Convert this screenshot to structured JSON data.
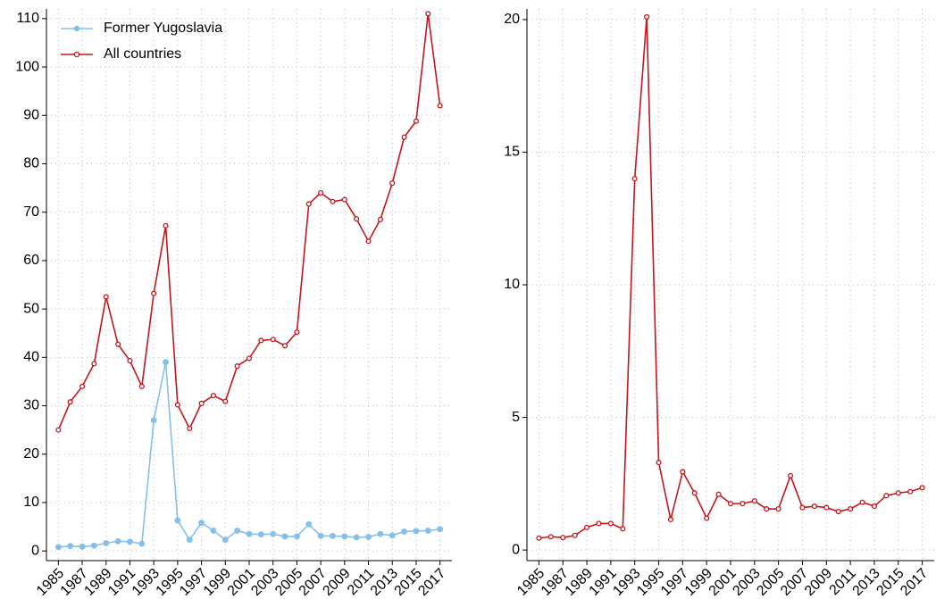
{
  "chart_data": [
    {
      "type": "line",
      "x": [
        1985,
        1986,
        1987,
        1988,
        1989,
        1990,
        1991,
        1992,
        1993,
        1994,
        1995,
        1996,
        1997,
        1998,
        1999,
        2000,
        2001,
        2002,
        2003,
        2004,
        2005,
        2006,
        2007,
        2008,
        2009,
        2010,
        2011,
        2012,
        2013,
        2014,
        2015,
        2016,
        2017
      ],
      "series": [
        {
          "name": "Former Yugoslavia",
          "color": "#85c0e9",
          "marker": "filled",
          "values": [
            0.8,
            1.0,
            0.9,
            1.1,
            1.6,
            2.0,
            1.9,
            1.5,
            27,
            39,
            6.3,
            2.3,
            5.8,
            4.2,
            2.3,
            4.2,
            3.5,
            3.4,
            3.5,
            3.0,
            3.0,
            5.5,
            3.1,
            3.1,
            3.0,
            2.8,
            2.9,
            3.5,
            3.2,
            4.0,
            4.1,
            4.2,
            4.5
          ]
        },
        {
          "name": "All countries",
          "color": "#c4161c",
          "marker": "open",
          "values": [
            25,
            30.8,
            34,
            38.7,
            52.5,
            42.7,
            39.3,
            34,
            53.2,
            67.2,
            30.2,
            25.3,
            30.5,
            32.1,
            30.9,
            38.2,
            39.8,
            43.5,
            43.7,
            42.4,
            45.2,
            71.7,
            74,
            72.2,
            72.6,
            68.6,
            64,
            68.5,
            76,
            85.5,
            88.8,
            111,
            92
          ]
        }
      ],
      "xlim": [
        1984,
        2018
      ],
      "xticks": [
        1985,
        1987,
        1989,
        1991,
        1993,
        1995,
        1997,
        1999,
        2001,
        2003,
        2005,
        2007,
        2009,
        2011,
        2013,
        2015,
        2017
      ],
      "ylim": [
        -2,
        112
      ],
      "yticks": [
        0,
        10,
        20,
        30,
        40,
        50,
        60,
        70,
        80,
        90,
        100,
        110
      ],
      "grid": true,
      "legend": "top-left"
    },
    {
      "type": "line",
      "x": [
        1985,
        1986,
        1987,
        1988,
        1989,
        1990,
        1991,
        1992,
        1993,
        1994,
        1995,
        1996,
        1997,
        1998,
        1999,
        2000,
        2001,
        2002,
        2003,
        2004,
        2005,
        2006,
        2007,
        2008,
        2009,
        2010,
        2011,
        2012,
        2013,
        2014,
        2015,
        2016,
        2017
      ],
      "series": [
        {
          "color": "#c4161c",
          "marker": "open",
          "values": [
            0.45,
            0.5,
            0.47,
            0.55,
            0.85,
            1.0,
            1.0,
            0.8,
            14.0,
            20.1,
            3.3,
            1.15,
            2.95,
            2.15,
            1.2,
            2.1,
            1.75,
            1.75,
            1.85,
            1.55,
            1.55,
            2.8,
            1.6,
            1.65,
            1.6,
            1.45,
            1.55,
            1.8,
            1.65,
            2.05,
            2.15,
            2.2,
            2.35
          ]
        }
      ],
      "xlim": [
        1984,
        2018
      ],
      "xticks": [
        1985,
        1987,
        1989,
        1991,
        1993,
        1995,
        1997,
        1999,
        2001,
        2003,
        2005,
        2007,
        2009,
        2011,
        2013,
        2015,
        2017
      ],
      "ylim": [
        -0.4,
        20.4
      ],
      "yticks": [
        0,
        5,
        10,
        15,
        20
      ],
      "grid": true
    }
  ]
}
